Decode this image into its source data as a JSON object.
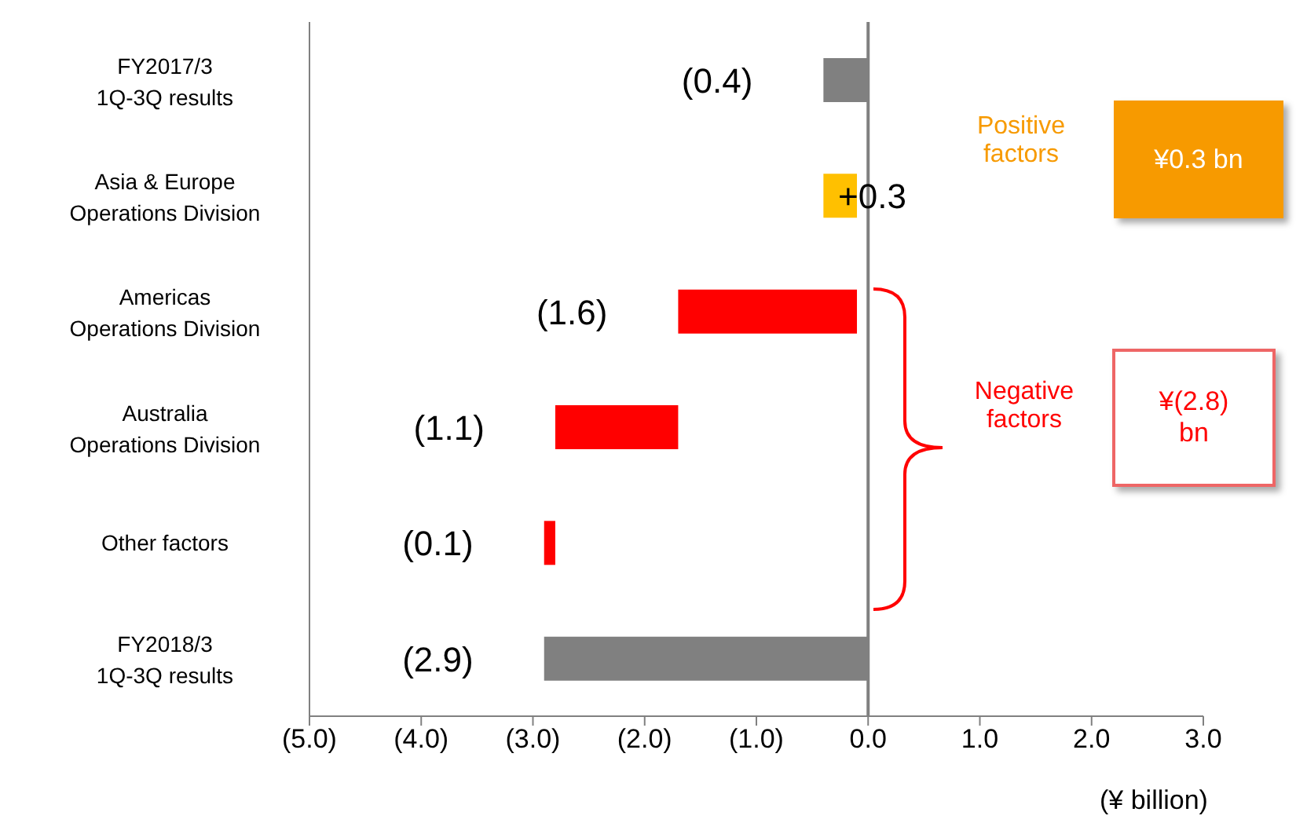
{
  "chart_data": {
    "type": "bar",
    "orientation": "horizontal",
    "categories": [
      "FY2017/3\n1Q-3Q results",
      "Asia & Europe\nOperations Division",
      "Americas\nOperations Division",
      "Australia\nOperations Division",
      "Other factors",
      "FY2018/3\n1Q-3Q results"
    ],
    "values": [
      -0.4,
      0.3,
      -1.6,
      -1.1,
      -0.1,
      -2.9
    ],
    "base": [
      0,
      -0.4,
      -0.1,
      -1.7,
      -2.8,
      0
    ],
    "colors": [
      "#808080",
      "#ffc000",
      "#ff0000",
      "#ff0000",
      "#ff0000",
      "#808080"
    ],
    "value_labels": [
      "(0.4)",
      "+0.3",
      "(1.6)",
      "(1.1)",
      "(0.1)",
      "(2.9)"
    ],
    "xlim": [
      -5,
      3
    ],
    "xticks": [
      {
        "value": -5,
        "label": "(5.0)"
      },
      {
        "value": -4,
        "label": "(4.0)"
      },
      {
        "value": -3,
        "label": "(3.0)"
      },
      {
        "value": -2,
        "label": "(2.0)"
      },
      {
        "value": -1,
        "label": "(1.0)"
      },
      {
        "value": 0,
        "label": "0.0"
      },
      {
        "value": 1,
        "label": "1.0"
      },
      {
        "value": 2,
        "label": "2.0"
      },
      {
        "value": 3,
        "label": "3.0"
      }
    ],
    "xlabel": "(¥ billion)",
    "ref_lines": [
      {
        "axis": "x",
        "value": 0,
        "color": "#808080"
      }
    ],
    "annotations": [
      "Positive factors",
      "¥0.3 bn",
      "Negative factors",
      "¥(2.8) bn"
    ],
    "legend": false
  }
}
